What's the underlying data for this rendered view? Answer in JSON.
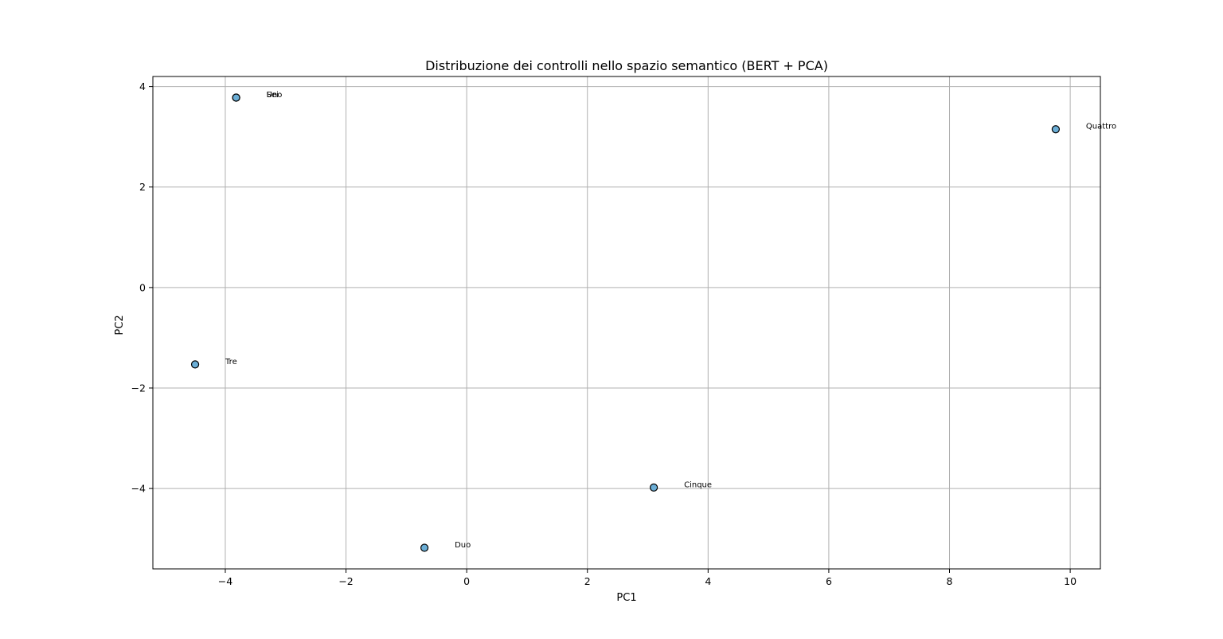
{
  "chart_data": {
    "type": "scatter",
    "title": "Distribuzione dei controlli nello spazio semantico (BERT + PCA)",
    "xlabel": "PC1",
    "ylabel": "PC2",
    "xlim": [
      -5.2,
      10.5
    ],
    "ylim": [
      -5.6,
      4.2
    ],
    "xticks": [
      -4,
      -2,
      0,
      2,
      4,
      6,
      8,
      10
    ],
    "yticks": [
      -4,
      -2,
      0,
      2,
      4
    ],
    "grid": true,
    "point_color": "#6baed6",
    "points": [
      {
        "label": "Uno",
        "x": -3.82,
        "y": 3.78
      },
      {
        "label": "Sei",
        "x": -3.82,
        "y": 3.78
      },
      {
        "label": "Duo",
        "x": -0.7,
        "y": -5.18
      },
      {
        "label": "Tre",
        "x": -4.5,
        "y": -1.53
      },
      {
        "label": "Quattro",
        "x": 9.76,
        "y": 3.15
      },
      {
        "label": "Cinque",
        "x": 3.1,
        "y": -3.98
      }
    ]
  }
}
